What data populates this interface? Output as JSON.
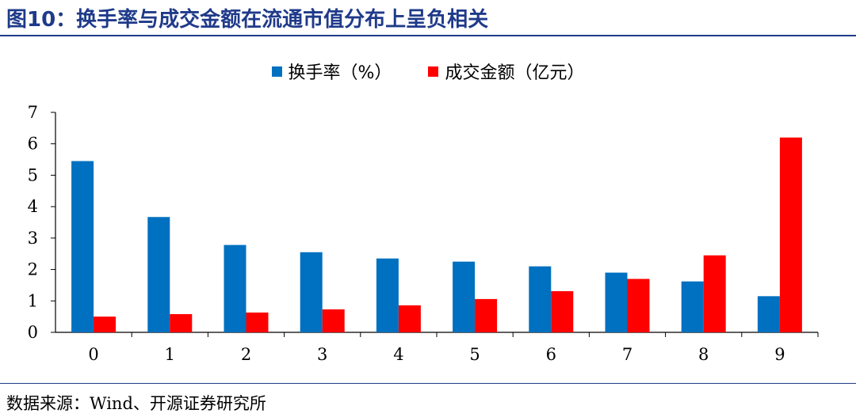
{
  "header": {
    "title": "图10：换手率与成交金额在流通市值分布上呈负相关"
  },
  "footer": {
    "source": "数据来源：Wind、开源证券研究所"
  },
  "chart_data": {
    "type": "bar",
    "categories": [
      "0",
      "1",
      "2",
      "3",
      "4",
      "5",
      "6",
      "7",
      "8",
      "9"
    ],
    "series": [
      {
        "name": "换手率（%）",
        "color": "#0070c0",
        "values": [
          5.45,
          3.67,
          2.78,
          2.55,
          2.35,
          2.25,
          2.1,
          1.9,
          1.62,
          1.15
        ]
      },
      {
        "name": "成交金额（亿元）",
        "color": "#ff0000",
        "values": [
          0.5,
          0.58,
          0.63,
          0.73,
          0.86,
          1.06,
          1.31,
          1.7,
          2.45,
          6.2
        ]
      }
    ],
    "ylim": [
      0,
      7
    ],
    "yticks": [
      "0",
      "1",
      "2",
      "3",
      "4",
      "5",
      "6",
      "7"
    ],
    "legend_position": "top-center",
    "grid": false
  }
}
